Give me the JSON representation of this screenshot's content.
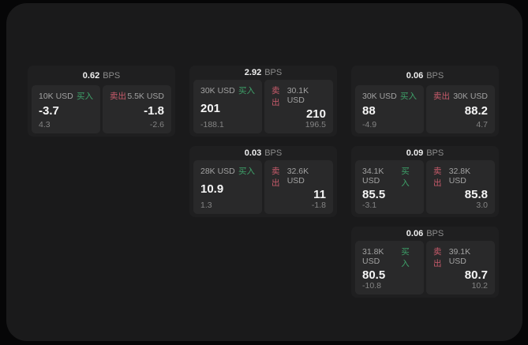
{
  "labels": {
    "bps": "BPS",
    "buy": "买入",
    "sell": "卖出"
  },
  "colors": {
    "background": "#060607",
    "surface": "#1a1a1b",
    "card": "#1f1f20",
    "panel": "#29292a",
    "buy_green": "#3ea169",
    "sell_red": "#c85b6b",
    "text_primary": "#f5f5f5",
    "text_secondary": "#a2a2a2",
    "text_muted": "#848484"
  },
  "cards": [
    {
      "bps": "0.62",
      "col": 1,
      "row": 1,
      "buy": {
        "amount": "10K USD",
        "value": "-3.7",
        "delta": "4.3"
      },
      "sell": {
        "amount": "5.5K USD",
        "value": "-1.8",
        "delta": "-2.6"
      }
    },
    {
      "bps": "2.92",
      "col": 2,
      "row": 1,
      "buy": {
        "amount": "30K USD",
        "value": "201",
        "delta": "-188.1"
      },
      "sell": {
        "amount": "30.1K USD",
        "value": "210",
        "delta": "196.5"
      }
    },
    {
      "bps": "0.06",
      "col": 3,
      "row": 1,
      "buy": {
        "amount": "30K USD",
        "value": "88",
        "delta": "-4.9"
      },
      "sell": {
        "amount": "30K USD",
        "value": "88.2",
        "delta": "4.7"
      }
    },
    {
      "bps": "0.03",
      "col": 2,
      "row": 2,
      "buy": {
        "amount": "28K USD",
        "value": "10.9",
        "delta": "1.3"
      },
      "sell": {
        "amount": "32.6K USD",
        "value": "11",
        "delta": "-1.8"
      }
    },
    {
      "bps": "0.09",
      "col": 3,
      "row": 2,
      "buy": {
        "amount": "34.1K USD",
        "value": "85.5",
        "delta": "-3.1"
      },
      "sell": {
        "amount": "32.8K USD",
        "value": "85.8",
        "delta": "3.0"
      }
    },
    {
      "bps": "0.06",
      "col": 3,
      "row": 3,
      "buy": {
        "amount": "31.8K USD",
        "value": "80.5",
        "delta": "-10.8"
      },
      "sell": {
        "amount": "39.1K USD",
        "value": "80.7",
        "delta": "10.2"
      }
    }
  ]
}
